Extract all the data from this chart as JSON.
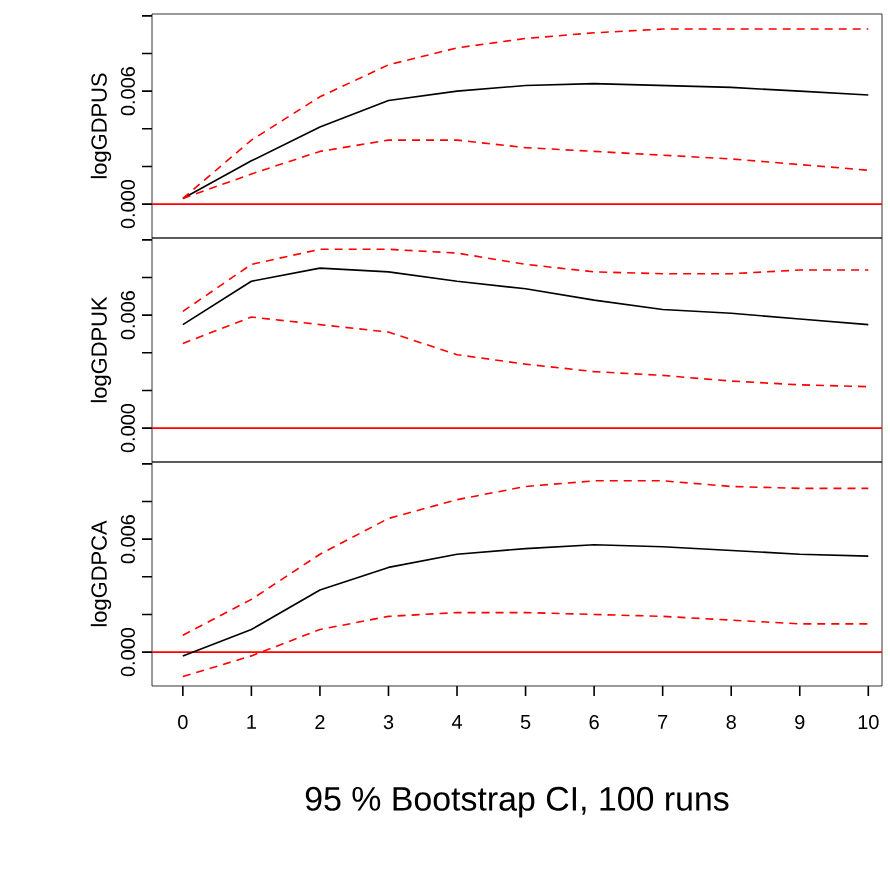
{
  "chart_data": [
    {
      "type": "line",
      "ylabel": "logGDPUS",
      "x": [
        0,
        1,
        2,
        3,
        4,
        5,
        6,
        7,
        8,
        9,
        10
      ],
      "xlim": [
        -0.45,
        10.2
      ],
      "ylim": [
        -0.0018,
        0.0101
      ],
      "tick_labels": "y",
      "yticks": [
        {
          "value": 0,
          "label": "0.000"
        },
        {
          "value": 0.002,
          "label": null
        },
        {
          "value": 0.004,
          "label": null
        },
        {
          "value": 0.006,
          "label": "0.006"
        },
        {
          "value": 0.008,
          "label": null
        },
        {
          "value": 0.01,
          "label": null
        }
      ],
      "ref_lines": [
        {
          "axis": "y",
          "value": 0,
          "color": "#ff0000"
        }
      ],
      "series": [
        {
          "color": "#000000",
          "line_style": "solid",
          "values": [
            0.0003,
            0.0023,
            0.0041,
            0.0055,
            0.006,
            0.0063,
            0.0064,
            0.0063,
            0.0062,
            0.006,
            0.0058
          ]
        },
        {
          "color": "#ff0000",
          "line_style": "dashed",
          "values": [
            0.0003,
            0.0034,
            0.0057,
            0.0074,
            0.0083,
            0.0088,
            0.0091,
            0.0093,
            0.0093,
            0.0093,
            0.0093
          ]
        },
        {
          "color": "#ff0000",
          "line_style": "dashed",
          "values": [
            0.0003,
            0.0016,
            0.0028,
            0.0034,
            0.0034,
            0.003,
            0.0028,
            0.0026,
            0.0024,
            0.0021,
            0.0018
          ]
        }
      ]
    },
    {
      "type": "line",
      "ylabel": "logGDPUK",
      "x": [
        0,
        1,
        2,
        3,
        4,
        5,
        6,
        7,
        8,
        9,
        10
      ],
      "xlim": [
        -0.45,
        10.2
      ],
      "ylim": [
        -0.0018,
        0.0101
      ],
      "tick_labels": "y",
      "yticks": [
        {
          "value": 0,
          "label": "0.000"
        },
        {
          "value": 0.002,
          "label": null
        },
        {
          "value": 0.004,
          "label": null
        },
        {
          "value": 0.006,
          "label": "0.006"
        },
        {
          "value": 0.008,
          "label": null
        },
        {
          "value": 0.01,
          "label": null
        }
      ],
      "ref_lines": [
        {
          "axis": "y",
          "value": 0,
          "color": "#ff0000"
        }
      ],
      "series": [
        {
          "color": "#000000",
          "line_style": "solid",
          "values": [
            0.0055,
            0.0078,
            0.0085,
            0.0083,
            0.0078,
            0.0074,
            0.0068,
            0.0063,
            0.0061,
            0.0058,
            0.0055
          ]
        },
        {
          "color": "#ff0000",
          "line_style": "dashed",
          "values": [
            0.0062,
            0.0087,
            0.0095,
            0.0095,
            0.0093,
            0.0087,
            0.0083,
            0.0082,
            0.0082,
            0.0084,
            0.0084
          ]
        },
        {
          "color": "#ff0000",
          "line_style": "dashed",
          "values": [
            0.0045,
            0.0059,
            0.0055,
            0.0051,
            0.0039,
            0.0034,
            0.003,
            0.0028,
            0.0025,
            0.0023,
            0.0022
          ]
        }
      ]
    },
    {
      "type": "line",
      "ylabel": "logGDPCA",
      "xlabel": "95 % Bootstrap CI,  100 runs",
      "x": [
        0,
        1,
        2,
        3,
        4,
        5,
        6,
        7,
        8,
        9,
        10
      ],
      "xlim": [
        -0.45,
        10.2
      ],
      "ylim": [
        -0.0018,
        0.0101
      ],
      "xticks": [
        0,
        1,
        2,
        3,
        4,
        5,
        6,
        7,
        8,
        9,
        10
      ],
      "yticks": [
        {
          "value": 0,
          "label": "0.000"
        },
        {
          "value": 0.002,
          "label": null
        },
        {
          "value": 0.004,
          "label": null
        },
        {
          "value": 0.006,
          "label": "0.006"
        },
        {
          "value": 0.008,
          "label": null
        },
        {
          "value": 0.01,
          "label": null
        }
      ],
      "ref_lines": [
        {
          "axis": "y",
          "value": 0,
          "color": "#ff0000"
        }
      ],
      "series": [
        {
          "color": "#000000",
          "line_style": "solid",
          "values": [
            -0.0002,
            0.0012,
            0.0033,
            0.0045,
            0.0052,
            0.0055,
            0.0057,
            0.0056,
            0.0054,
            0.0052,
            0.0051
          ]
        },
        {
          "color": "#ff0000",
          "line_style": "dashed",
          "values": [
            0.0009,
            0.0028,
            0.0052,
            0.0071,
            0.0081,
            0.0088,
            0.0091,
            0.0091,
            0.0088,
            0.0087,
            0.0087
          ]
        },
        {
          "color": "#ff0000",
          "line_style": "dashed",
          "values": [
            -0.0013,
            -0.0002,
            0.0012,
            0.0019,
            0.0021,
            0.0021,
            0.002,
            0.0019,
            0.0017,
            0.0015,
            0.0015
          ]
        }
      ]
    }
  ]
}
